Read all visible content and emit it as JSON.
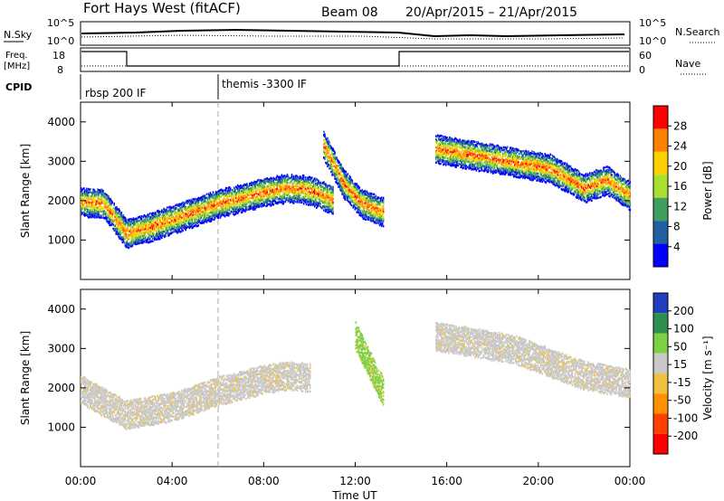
{
  "header": {
    "title": "Fort Hays West (fitACF)",
    "beam": "Beam 08",
    "date_range": "20/Apr/2015 – 21/Apr/2015"
  },
  "noise_panel": {
    "left_label": "N.Sky",
    "right_label": "N.Search",
    "tick_hi": "10^5",
    "tick_lo": "10^0",
    "right_tick_hi": "10^5",
    "right_tick_lo": "10^0"
  },
  "freq_panel": {
    "left_label_1": "Freq.",
    "left_label_2": "[MHz]",
    "ticks_left": [
      "18",
      "8"
    ],
    "ticks_right": [
      "60",
      "0"
    ],
    "right_label": "Nave"
  },
  "cpid_panel": {
    "label": "CPID",
    "modes": [
      {
        "name": "rbsp 200 IF",
        "start_hour": 0
      },
      {
        "name": "themis -3300 IF",
        "start_hour": 6
      }
    ]
  },
  "power_colorbar": {
    "label": "Power [dB]",
    "ticks": [
      "28",
      "24",
      "20",
      "16",
      "12",
      "8",
      "4"
    ],
    "colors": [
      "#ff0000",
      "#ff7f00",
      "#ffd000",
      "#a8e030",
      "#3f9f5f",
      "#205fa0",
      "#0000ff"
    ]
  },
  "velocity_colorbar": {
    "label": "Velocity [m s⁻¹]",
    "ticks": [
      "200",
      "100",
      "50",
      "15",
      "-15",
      "-50",
      "-100",
      "-200"
    ],
    "colors": [
      "#1f3fbf",
      "#2f8f4f",
      "#7fd040",
      "#c8c8c8",
      "#f0c040",
      "#ff9000",
      "#ff4000",
      "#ff0000"
    ]
  },
  "chart_data": [
    {
      "type": "heatmap",
      "name": "power",
      "ylabel": "Slant Range [km]",
      "xlabel": "Time UT",
      "xlim_hours": [
        0,
        24
      ],
      "ylim_km": [
        0,
        4500
      ],
      "y_ticks": [
        "4000",
        "3000",
        "2000",
        "1000"
      ],
      "x_ticks": [
        "00:00",
        "04:00",
        "08:00",
        "12:00",
        "16:00",
        "20:00",
        "00:00"
      ],
      "bands": [
        {
          "t_hours": [
            0,
            1,
            2,
            3,
            4,
            6,
            8,
            9,
            10,
            11
          ],
          "range_km": [
            1950,
            1900,
            1150,
            1300,
            1500,
            1900,
            2200,
            2300,
            2250,
            2000
          ],
          "peak_db": 24
        },
        {
          "t_hours": [
            10.6,
            11.5,
            12.3,
            13.2
          ],
          "range_km": [
            3400,
            2400,
            1900,
            1700
          ],
          "peak_db": 16
        },
        {
          "t_hours": [
            15.5,
            17,
            19,
            20.5,
            22,
            23,
            24
          ],
          "range_km": [
            3300,
            3150,
            2950,
            2800,
            2300,
            2500,
            2100
          ],
          "peak_db": 24
        }
      ]
    },
    {
      "type": "heatmap",
      "name": "velocity",
      "ylabel": "Slant Range [km]",
      "xlabel": "Time UT",
      "xlim_hours": [
        0,
        24
      ],
      "ylim_km": [
        0,
        4500
      ],
      "y_ticks": [
        "4000",
        "3000",
        "2000",
        "1000"
      ],
      "x_ticks": [
        "00:00",
        "04:00",
        "08:00",
        "12:00",
        "16:00",
        "20:00",
        "00:00"
      ],
      "bands": [
        {
          "t_hours": [
            0,
            2,
            4,
            6,
            8,
            9,
            10
          ],
          "range_km": [
            1950,
            1300,
            1500,
            1900,
            2200,
            2300,
            2250
          ],
          "dominant_velocity": "-15 to 15"
        },
        {
          "t_hours": [
            12,
            13.2
          ],
          "range_km": [
            3300,
            1900
          ],
          "dominant_velocity": "50"
        },
        {
          "t_hours": [
            15.5,
            19,
            22,
            24
          ],
          "range_km": [
            3300,
            2950,
            2300,
            2100
          ],
          "dominant_velocity": "-15 to 15"
        }
      ]
    }
  ]
}
